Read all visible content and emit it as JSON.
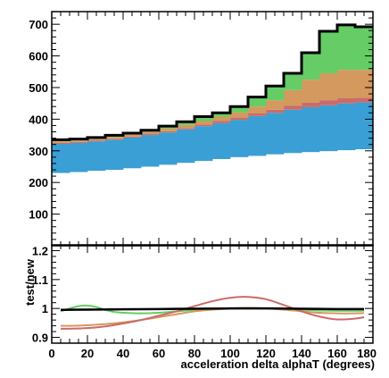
{
  "chart_data": [
    {
      "type": "area",
      "subtype": "stacked-histogram",
      "title": "",
      "xlabel": "",
      "ylabel": "",
      "xlim": [
        0,
        180
      ],
      "ylim": [
        0,
        740
      ],
      "yticks": [
        100,
        200,
        300,
        400,
        500,
        600,
        700
      ],
      "bin_edges": [
        0,
        10,
        20,
        30,
        40,
        50,
        60,
        70,
        80,
        90,
        100,
        110,
        120,
        130,
        140,
        150,
        160,
        170,
        180
      ],
      "series": [
        {
          "name": "",
          "color": "#3a9fd4",
          "values": [
            230,
            233,
            237,
            240,
            245,
            250,
            256,
            262,
            268,
            274,
            280,
            284,
            289,
            293,
            296,
            299,
            302,
            305
          ]
        },
        {
          "name": "",
          "color": "#cc6a6a",
          "values": [
            0,
            0,
            0,
            0,
            0,
            0,
            0,
            0,
            0,
            0,
            0,
            0,
            0,
            0,
            0,
            0,
            0,
            0
          ]
        },
        {
          "name": "",
          "color": "#d4995e",
          "values": [
            0,
            0,
            0,
            0,
            0,
            0,
            0,
            0,
            0,
            0,
            0,
            0,
            0,
            0,
            0,
            0,
            0,
            0
          ]
        },
        {
          "name": "",
          "color": "#66cc66",
          "values": [
            0,
            0,
            0,
            0,
            0,
            0,
            0,
            0,
            0,
            0,
            0,
            0,
            0,
            0,
            0,
            0,
            0,
            0
          ]
        }
      ],
      "stack_levels": {
        "blue_top": [
          322,
          325,
          330,
          335,
          342,
          350,
          358,
          368,
          378,
          388,
          398,
          410,
          420,
          430,
          438,
          444,
          450,
          453
        ],
        "red_top": [
          325,
          328,
          333,
          338,
          345,
          353,
          362,
          372,
          383,
          394,
          405,
          418,
          430,
          442,
          452,
          460,
          466,
          468
        ],
        "orange_top": [
          330,
          333,
          338,
          344,
          352,
          360,
          370,
          382,
          394,
          408,
          422,
          440,
          460,
          492,
          525,
          545,
          556,
          556
        ],
        "green_top": [
          335,
          337,
          342,
          349,
          356,
          365,
          378,
          392,
          408,
          420,
          440,
          470,
          505,
          545,
          610,
          678,
          698,
          692
        ],
        "total_outline": [
          335,
          337,
          342,
          349,
          356,
          365,
          378,
          392,
          408,
          420,
          440,
          470,
          505,
          545,
          610,
          678,
          698,
          692
        ]
      }
    },
    {
      "type": "line",
      "title": "",
      "xlabel": "acceleration delta alphaT (degrees)",
      "ylabel": "test/new",
      "xlim": [
        0,
        180
      ],
      "ylim": [
        0.88,
        1.22
      ],
      "xticks": [
        0,
        20,
        40,
        60,
        80,
        100,
        120,
        140,
        160,
        180
      ],
      "xtick_labels": [
        "0",
        "20",
        "40",
        "60",
        "80",
        "100",
        "120",
        "140",
        "160",
        "180"
      ],
      "yticks": [
        0.9,
        1.0,
        1.1,
        1.2
      ],
      "ytick_labels": [
        "0.9",
        "1",
        "1.1",
        "1.2"
      ],
      "series": [
        {
          "name": "",
          "color": "#66cc66",
          "x": [
            5,
            10,
            15,
            20,
            25,
            30,
            35,
            40,
            50,
            60,
            70,
            80,
            90,
            100,
            110,
            120,
            130,
            140,
            150,
            160,
            170,
            175
          ],
          "y": [
            0.99,
            1.0,
            1.008,
            1.01,
            1.005,
            0.995,
            0.988,
            0.985,
            0.983,
            0.985,
            0.99,
            0.995,
            0.998,
            1.0,
            1.001,
            1.0,
            0.998,
            0.995,
            0.993,
            0.992,
            0.992,
            0.992
          ]
        },
        {
          "name": "",
          "color": "#d4995e",
          "x": [
            5,
            10,
            20,
            30,
            40,
            50,
            60,
            70,
            80,
            90,
            100,
            110,
            120,
            130,
            140,
            150,
            160,
            170,
            175
          ],
          "y": [
            0.94,
            0.94,
            0.942,
            0.946,
            0.952,
            0.96,
            0.97,
            0.98,
            0.99,
            0.996,
            1.0,
            1.002,
            1.0,
            0.996,
            0.99,
            0.985,
            0.983,
            0.983,
            0.984
          ]
        },
        {
          "name": "",
          "color": "#cc6a6a",
          "x": [
            5,
            10,
            20,
            30,
            40,
            50,
            60,
            70,
            80,
            90,
            100,
            110,
            120,
            130,
            140,
            150,
            160,
            170,
            175
          ],
          "y": [
            0.93,
            0.93,
            0.932,
            0.938,
            0.948,
            0.96,
            0.975,
            0.99,
            1.008,
            1.025,
            1.037,
            1.04,
            1.032,
            1.012,
            0.99,
            0.972,
            0.962,
            0.965,
            0.97
          ]
        },
        {
          "name": "",
          "color": "#000000",
          "x": [
            5,
            20,
            40,
            60,
            80,
            100,
            120,
            140,
            160,
            175
          ],
          "y": [
            0.995,
            0.996,
            0.997,
            0.998,
            0.999,
            1.0,
            1.0,
            0.999,
            0.998,
            0.998
          ]
        }
      ]
    }
  ]
}
